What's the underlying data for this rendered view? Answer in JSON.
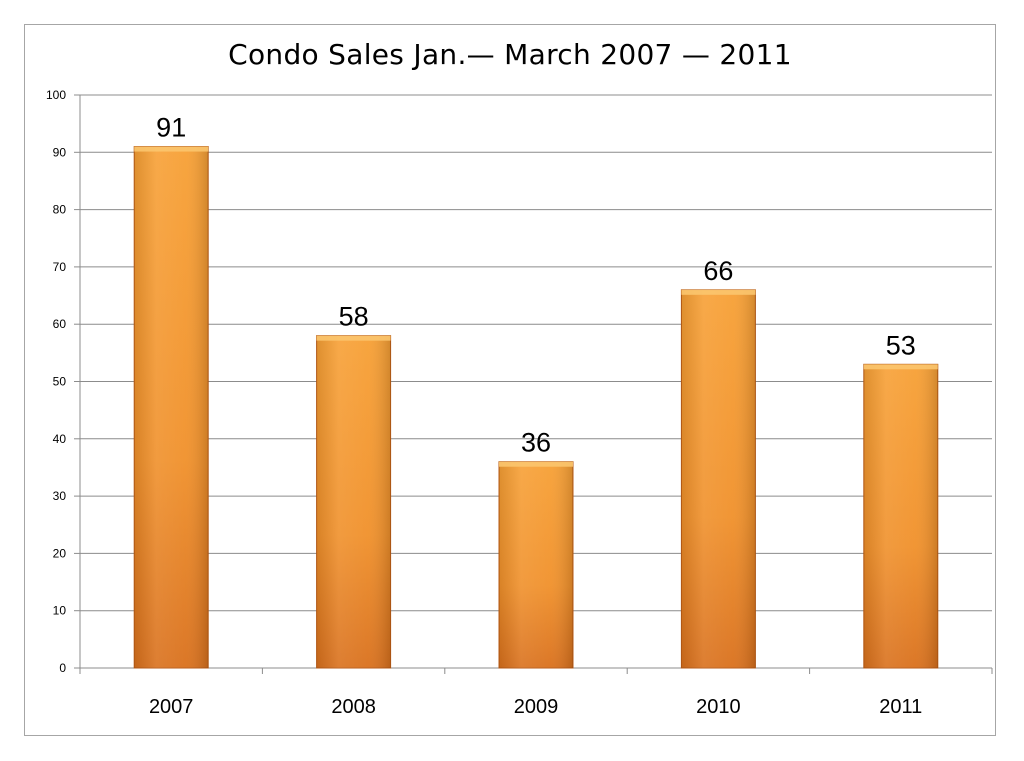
{
  "chart_data": {
    "type": "bar",
    "title": "Condo Sales Jan.— March 2007 — 2011",
    "xlabel": "",
    "ylabel": "",
    "categories": [
      "2007",
      "2008",
      "2009",
      "2010",
      "2011"
    ],
    "values": [
      91,
      58,
      36,
      66,
      53
    ],
    "data_labels": [
      "91",
      "58",
      "36",
      "66",
      "53"
    ],
    "ylim": [
      0,
      100
    ],
    "y_ticks": [
      0,
      10,
      20,
      30,
      40,
      50,
      60,
      70,
      80,
      90,
      100
    ],
    "grid": true,
    "legend": "none",
    "colors": {
      "bar_light": "#f7a035",
      "bar_mid": "#f0902a",
      "bar_dark": "#d9701c",
      "bar_edge": "#b85a14",
      "bar_top": "#fbc56e",
      "gridline": "#8c8c8c",
      "axis": "#8c8c8c"
    }
  }
}
